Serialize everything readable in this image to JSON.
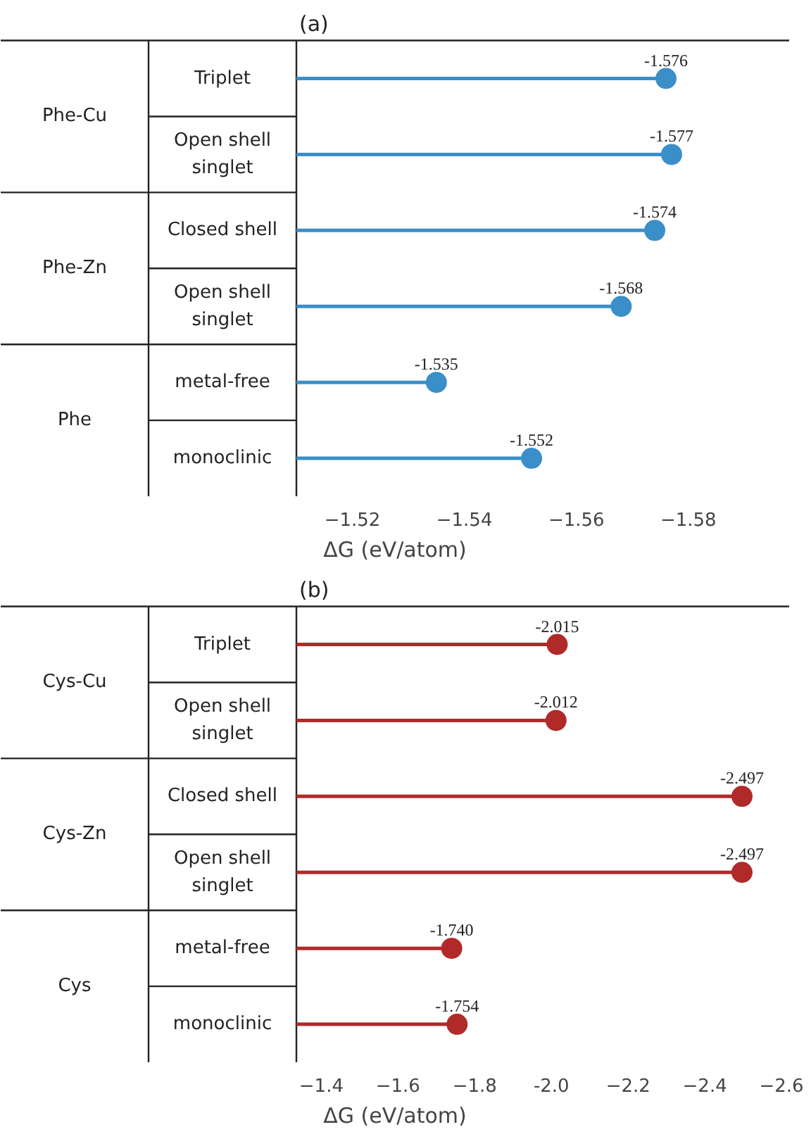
{
  "chart_data": [
    {
      "type": "lollipop",
      "title": "(a)",
      "categories": [
        "Triplet",
        "Open shell singlet",
        "Closed shell",
        "Open shell singlet",
        "metal-free",
        "monoclinic"
      ],
      "annotations": [
        "Phe-Cu",
        "Phe-Zn",
        "Phe"
      ],
      "values": [
        -1.576,
        -1.577,
        -1.574,
        -1.568,
        -1.535,
        -1.552
      ],
      "value_labels": [
        "-1.576",
        "-1.577",
        "-1.574",
        "-1.568",
        "-1.535",
        "-1.552"
      ],
      "color": "#3a8fc9",
      "marker": "circle",
      "orientation": "horizontal",
      "grid": false,
      "xlabel": "ΔG (eV/atom)",
      "xlim": [
        -1.51,
        -1.598
      ],
      "xticks": [
        -1.52,
        -1.54,
        -1.56,
        -1.58
      ]
    },
    {
      "type": "lollipop",
      "title": "(b)",
      "categories": [
        "Triplet",
        "Open shell singlet",
        "Closed shell",
        "Open shell singlet",
        "metal-free",
        "monoclinic"
      ],
      "annotations": [
        "Cys-Cu",
        "Cys-Zn",
        "Cys"
      ],
      "values": [
        -2.015,
        -2.012,
        -2.497,
        -2.497,
        -1.74,
        -1.754
      ],
      "value_labels": [
        "-2.015",
        "-2.012",
        "-2.497",
        "-2.497",
        "-1.740",
        "-1.754"
      ],
      "color": "#b02a2a",
      "marker": "circle",
      "orientation": "horizontal",
      "grid": false,
      "xlabel": "ΔG (eV/atom)",
      "xlim": [
        -1.335,
        -2.62
      ],
      "xticks": [
        -1.4,
        -1.6,
        -1.8,
        {
          "value": -2.0,
          "label": "-2.0"
        },
        -2.2,
        -2.4,
        -2.6
      ]
    }
  ]
}
